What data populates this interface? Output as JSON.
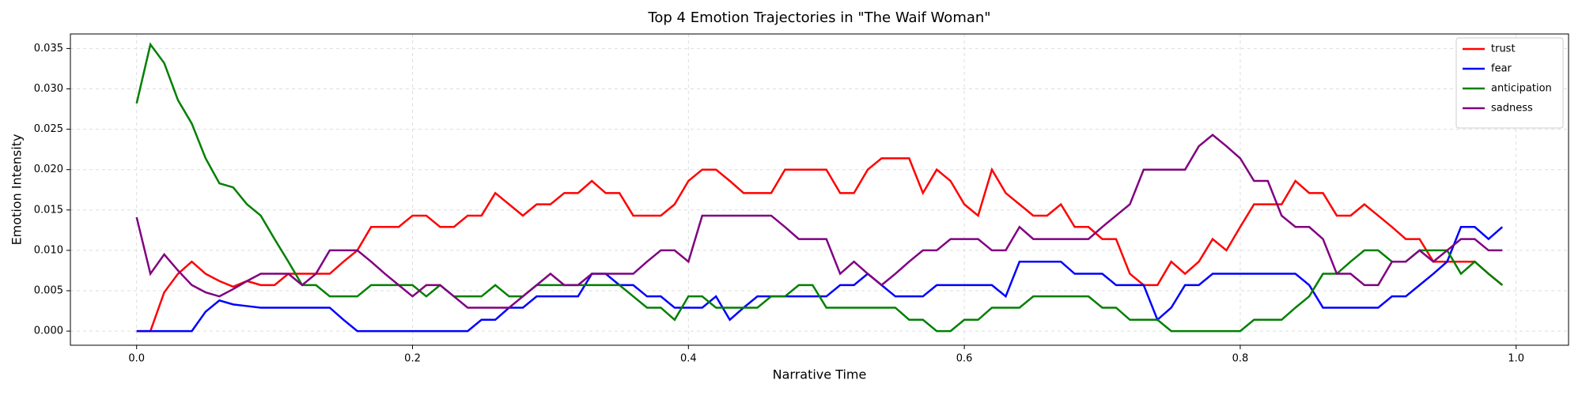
{
  "chart_data": {
    "type": "line",
    "title": "Top 4 Emotion Trajectories in \"The Waif Woman\"",
    "x_label": "Narrative Time",
    "y_label": "Emotion Intensity",
    "x": [
      0,
      0.01,
      0.02,
      0.03,
      0.04,
      0.05,
      0.06,
      0.07,
      0.08,
      0.09,
      0.1,
      0.11,
      0.12,
      0.13,
      0.14,
      0.15,
      0.16,
      0.17,
      0.18,
      0.19,
      0.2,
      0.21,
      0.22,
      0.23,
      0.24,
      0.25,
      0.26,
      0.27,
      0.28,
      0.29,
      0.3,
      0.31,
      0.32,
      0.33,
      0.34,
      0.35,
      0.36,
      0.37,
      0.38,
      0.39,
      0.4,
      0.41,
      0.42,
      0.43,
      0.44,
      0.45,
      0.46,
      0.47,
      0.48,
      0.49,
      0.5,
      0.51,
      0.52,
      0.53,
      0.54,
      0.55,
      0.56,
      0.57,
      0.58,
      0.59,
      0.6,
      0.61,
      0.62,
      0.63,
      0.64,
      0.65,
      0.66,
      0.67,
      0.68,
      0.69,
      0.7,
      0.71,
      0.72,
      0.73,
      0.74,
      0.75,
      0.76,
      0.77,
      0.78,
      0.79,
      0.8,
      0.81,
      0.82,
      0.83,
      0.84,
      0.85,
      0.86,
      0.87,
      0.88,
      0.89,
      0.9,
      0.91,
      0.92,
      0.93,
      0.94,
      0.95,
      0.96,
      0.97,
      0.98,
      0.99
    ],
    "series": [
      {
        "name": "trust",
        "color": "#ff0000",
        "values": [
          0,
          0,
          0.0048,
          0.0071,
          0.0086,
          0.0071,
          0.0062,
          0.0055,
          0.0062,
          0.0057,
          0.0057,
          0.0071,
          0.0071,
          0.0071,
          0.0071,
          0.0086,
          0.01,
          0.0129,
          0.0129,
          0.0129,
          0.0143,
          0.0143,
          0.0129,
          0.0129,
          0.0143,
          0.0143,
          0.0171,
          0.0157,
          0.0143,
          0.0157,
          0.0157,
          0.0171,
          0.0171,
          0.0186,
          0.0171,
          0.0171,
          0.0143,
          0.0143,
          0.0143,
          0.0157,
          0.0186,
          0.02,
          0.02,
          0.0186,
          0.0171,
          0.0171,
          0.0171,
          0.02,
          0.02,
          0.02,
          0.02,
          0.0171,
          0.0171,
          0.02,
          0.0214,
          0.0214,
          0.0214,
          0.0171,
          0.02,
          0.0186,
          0.0157,
          0.0143,
          0.02,
          0.0171,
          0.0157,
          0.0143,
          0.0143,
          0.0157,
          0.0129,
          0.0129,
          0.0114,
          0.0114,
          0.0071,
          0.0057,
          0.0057,
          0.0086,
          0.0071,
          0.0086,
          0.0114,
          0.01,
          0.0129,
          0.0157,
          0.0157,
          0.0157,
          0.0186,
          0.0171,
          0.0171,
          0.0143,
          0.0143,
          0.0157,
          0.0143,
          0.0129,
          0.0114,
          0.0114,
          0.0086,
          0.0086,
          0.0086,
          0.0086,
          0.0071,
          0.0057
        ]
      },
      {
        "name": "fear",
        "color": "#0000ff",
        "values": [
          0,
          0,
          0,
          0,
          0,
          0.0024,
          0.0038,
          0.0033,
          0.0031,
          0.0029,
          0.0029,
          0.0029,
          0.0029,
          0.0029,
          0.0029,
          0.0014,
          0,
          0,
          0,
          0,
          0,
          0,
          0,
          0,
          0,
          0.0014,
          0.0014,
          0.0029,
          0.0029,
          0.0043,
          0.0043,
          0.0043,
          0.0043,
          0.0071,
          0.0071,
          0.0057,
          0.0057,
          0.0043,
          0.0043,
          0.0029,
          0.0029,
          0.0029,
          0.0043,
          0.0014,
          0.0029,
          0.0043,
          0.0043,
          0.0043,
          0.0043,
          0.0043,
          0.0043,
          0.0057,
          0.0057,
          0.0071,
          0.0057,
          0.0043,
          0.0043,
          0.0043,
          0.0057,
          0.0057,
          0.0057,
          0.0057,
          0.0057,
          0.0043,
          0.0086,
          0.0086,
          0.0086,
          0.0086,
          0.0071,
          0.0071,
          0.0071,
          0.0057,
          0.0057,
          0.0057,
          0.0014,
          0.0029,
          0.0057,
          0.0057,
          0.0071,
          0.0071,
          0.0071,
          0.0071,
          0.0071,
          0.0071,
          0.0071,
          0.0057,
          0.0029,
          0.0029,
          0.0029,
          0.0029,
          0.0029,
          0.0043,
          0.0043,
          0.0057,
          0.0071,
          0.0086,
          0.0129,
          0.0129,
          0.0114,
          0.0129
        ]
      },
      {
        "name": "anticipation",
        "color": "#008000",
        "values": [
          0.0282,
          0.0355,
          0.0332,
          0.0286,
          0.0257,
          0.0214,
          0.0183,
          0.0178,
          0.0157,
          0.0143,
          0.0114,
          0.0086,
          0.0057,
          0.0057,
          0.0043,
          0.0043,
          0.0043,
          0.0057,
          0.0057,
          0.0057,
          0.0057,
          0.0043,
          0.0057,
          0.0043,
          0.0043,
          0.0043,
          0.0057,
          0.0043,
          0.0043,
          0.0057,
          0.0057,
          0.0057,
          0.0057,
          0.0057,
          0.0057,
          0.0057,
          0.0043,
          0.0029,
          0.0029,
          0.0014,
          0.0043,
          0.0043,
          0.0029,
          0.0029,
          0.0029,
          0.0029,
          0.0043,
          0.0043,
          0.0057,
          0.0057,
          0.0029,
          0.0029,
          0.0029,
          0.0029,
          0.0029,
          0.0029,
          0.0014,
          0.0014,
          0,
          0,
          0.0014,
          0.0014,
          0.0029,
          0.0029,
          0.0029,
          0.0043,
          0.0043,
          0.0043,
          0.0043,
          0.0043,
          0.0029,
          0.0029,
          0.0014,
          0.0014,
          0.0014,
          0,
          0,
          0,
          0,
          0,
          0,
          0.0014,
          0.0014,
          0.0014,
          0.0029,
          0.0043,
          0.0071,
          0.0071,
          0.0086,
          0.01,
          0.01,
          0.0086,
          0.0086,
          0.01,
          0.01,
          0.01,
          0.0071,
          0.0086,
          0.0071,
          0.0057
        ]
      },
      {
        "name": "sadness",
        "color": "#800080",
        "values": [
          0.0141,
          0.0071,
          0.0095,
          0.0075,
          0.0057,
          0.0048,
          0.0043,
          0.0052,
          0.0062,
          0.0071,
          0.0071,
          0.0071,
          0.0057,
          0.0071,
          0.01,
          0.01,
          0.01,
          0.0086,
          0.0071,
          0.0057,
          0.0043,
          0.0057,
          0.0057,
          0.0043,
          0.0029,
          0.0029,
          0.0029,
          0.0029,
          0.0043,
          0.0057,
          0.0071,
          0.0057,
          0.0057,
          0.0071,
          0.0071,
          0.0071,
          0.0071,
          0.0086,
          0.01,
          0.01,
          0.0086,
          0.0143,
          0.0143,
          0.0143,
          0.0143,
          0.0143,
          0.0143,
          0.0129,
          0.0114,
          0.0114,
          0.0114,
          0.0071,
          0.0086,
          0.0071,
          0.0057,
          0.0071,
          0.0086,
          0.01,
          0.01,
          0.0114,
          0.0114,
          0.0114,
          0.01,
          0.01,
          0.0129,
          0.0114,
          0.0114,
          0.0114,
          0.0114,
          0.0114,
          0.0129,
          0.0143,
          0.0157,
          0.02,
          0.02,
          0.02,
          0.02,
          0.0229,
          0.0243,
          0.0229,
          0.0214,
          0.0186,
          0.0186,
          0.0143,
          0.0129,
          0.0129,
          0.0114,
          0.0071,
          0.0071,
          0.0057,
          0.0057,
          0.0086,
          0.0086,
          0.01,
          0.0086,
          0.01,
          0.0114,
          0.0114,
          0.01,
          0.01
        ]
      }
    ],
    "xlim": [
      -0.048,
      1.038
    ],
    "xticks": [
      {
        "value": 0,
        "label": "0.0"
      },
      0.2,
      0.4,
      0.6,
      0.8,
      {
        "value": 1,
        "label": "1.0"
      }
    ],
    "ylim": [
      -0.00175,
      0.0368
    ],
    "yticks": [
      {
        "value": 0,
        "label": "0.000"
      },
      {
        "value": 0.005,
        "label": "0.005"
      },
      {
        "value": 0.01,
        "label": "0.010"
      },
      {
        "value": 0.015,
        "label": "0.015"
      },
      {
        "value": 0.02,
        "label": "0.020"
      },
      {
        "value": 0.025,
        "label": "0.025"
      },
      {
        "value": 0.03,
        "label": "0.030"
      },
      {
        "value": 0.035,
        "label": "0.035"
      }
    ],
    "grid": true,
    "legend": "upper right"
  }
}
